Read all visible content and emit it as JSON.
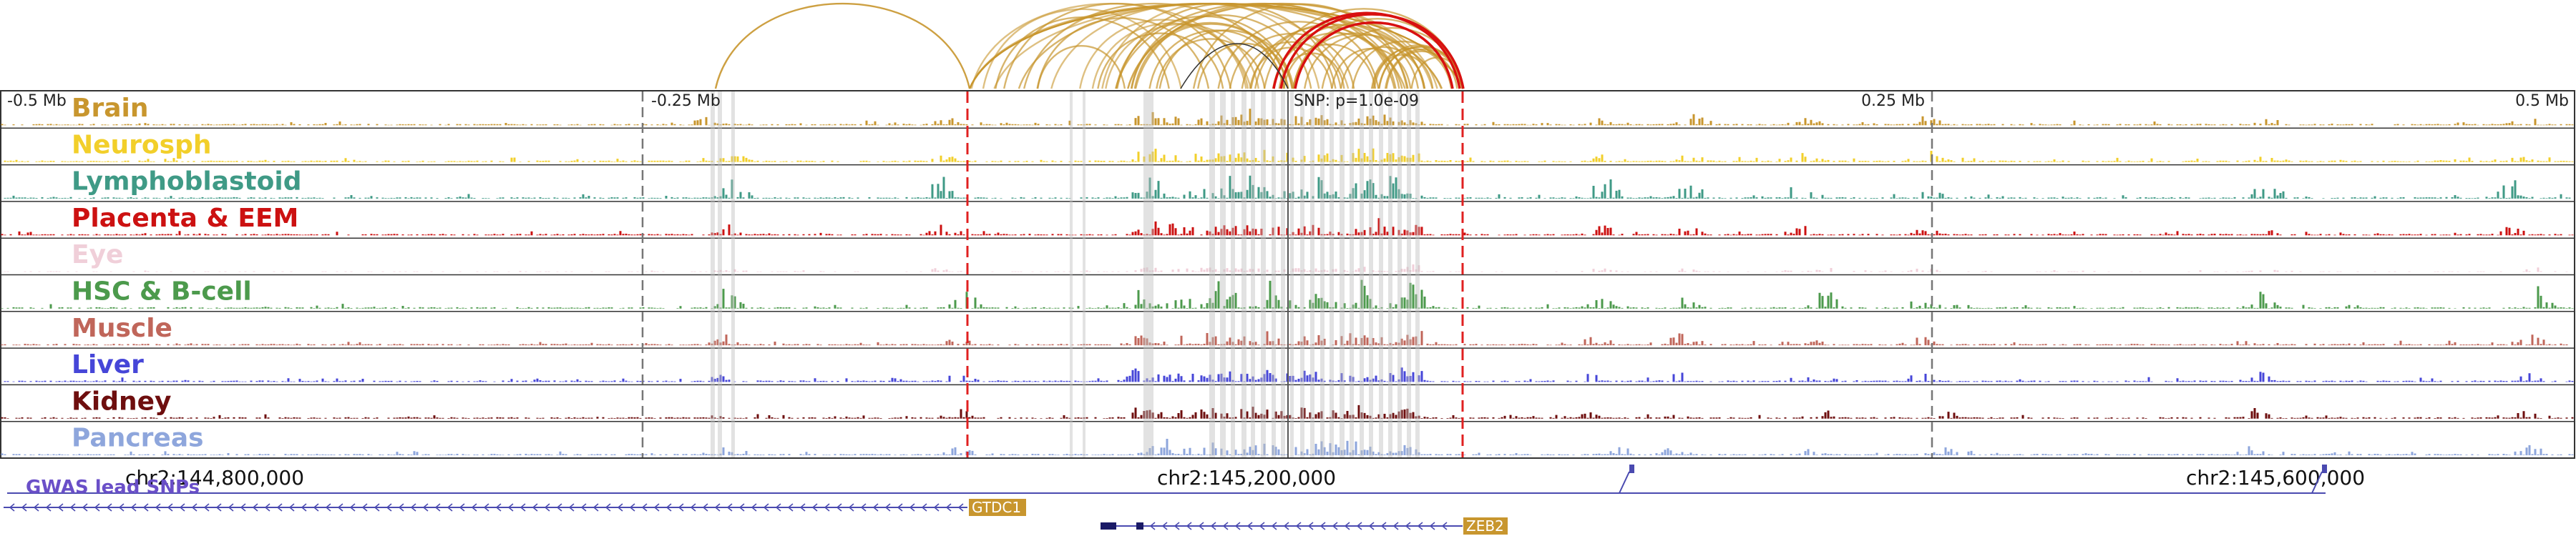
{
  "scale_labels": [
    "-0.5 Mb",
    "-0.25 Mb",
    "0.25 Mb",
    "0.5 Mb"
  ],
  "snp_label": "SNP: p=1.0e-09",
  "tracks": [
    {
      "label": "Brain",
      "color": "#c8962e"
    },
    {
      "label": "Neurosph",
      "color": "#f2cf2a"
    },
    {
      "label": "Lymphoblastoid",
      "color": "#3f9a86"
    },
    {
      "label": "Placenta & EEM",
      "color": "#cc1111"
    },
    {
      "label": "Eye",
      "color": "#f0cfd9"
    },
    {
      "label": "HSC & B-cell",
      "color": "#4c9a4c"
    },
    {
      "label": "Muscle",
      "color": "#c0665a"
    },
    {
      "label": "Liver",
      "color": "#4646d8"
    },
    {
      "label": "Kidney",
      "color": "#6e0e0e"
    },
    {
      "label": "Pancreas",
      "color": "#8ea6dc"
    }
  ],
  "coords": [
    "chr2:144,800,000",
    "chr2:145,200,000",
    "chr2:145,600,000"
  ],
  "gwas_label": "GWAS lead SNPs",
  "genes": [
    "GTDC1",
    "ZEB2"
  ],
  "colors": {
    "arc": "#c8962e",
    "arc_highlight": "#d81010",
    "region_marker": "#e02020",
    "scale_marker": "#777777",
    "gene_model": "#4a4ab0",
    "gene_label_bg": "#c8962e",
    "gwas_label": "#6a4fc8"
  }
}
